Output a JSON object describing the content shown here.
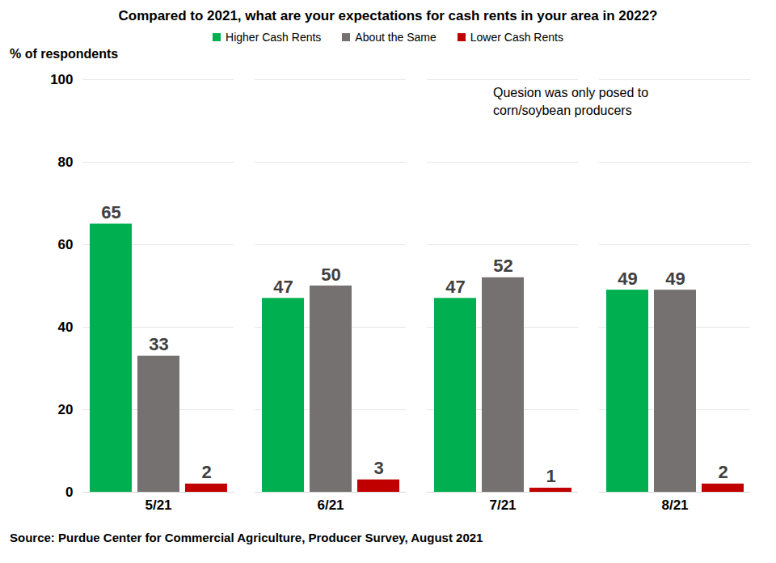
{
  "chart_data": {
    "type": "bar",
    "title": "Compared to 2021, what are your expectations for cash rents in your area in 2022?",
    "ylabel": "% of respondents",
    "annotation": "Quesion was only posed to corn/soybean producers",
    "caption": "Source: Purdue Center for Commercial Agriculture, Producer Survey, August 2021",
    "categories": [
      "5/21",
      "6/21",
      "7/21",
      "8/21"
    ],
    "series": [
      {
        "name": "Higher Cash Rents",
        "color": "#00b050",
        "values": [
          65,
          47,
          47,
          49
        ]
      },
      {
        "name": "About the Same",
        "color": "#767171",
        "values": [
          33,
          50,
          52,
          49
        ]
      },
      {
        "name": "Lower Cash Rents",
        "color": "#c00000",
        "values": [
          2,
          3,
          1,
          2
        ]
      }
    ],
    "ylim": [
      0,
      100
    ],
    "yticks": [
      0,
      20,
      40,
      60,
      80,
      100
    ],
    "grid": true,
    "data_labels": true,
    "legend": "top"
  }
}
